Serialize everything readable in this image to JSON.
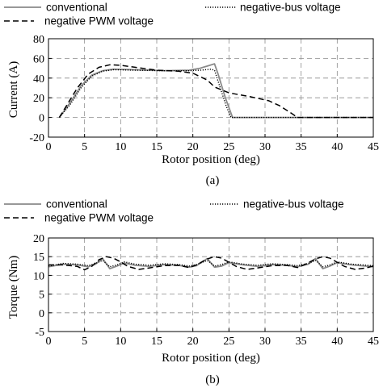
{
  "chart_data": [
    {
      "type": "line",
      "caption": "(a)",
      "xlabel": "Rotor position (deg)",
      "ylabel": "Current (A)",
      "xlim": [
        0,
        45
      ],
      "ylim": [
        -20,
        80
      ],
      "xticks": [
        0,
        5,
        10,
        15,
        20,
        25,
        30,
        35,
        40,
        45
      ],
      "yticks": [
        -20,
        0,
        20,
        40,
        60,
        80
      ],
      "grid": true,
      "legend_position": "top, outside plot",
      "series": [
        {
          "name": "conventional",
          "style": "solid",
          "color": "#8a8a8a",
          "points": [
            [
              1.5,
              0
            ],
            [
              3,
              15
            ],
            [
              4.5,
              32
            ],
            [
              6,
              43
            ],
            [
              7.5,
              47.5
            ],
            [
              9,
              49
            ],
            [
              12,
              48.5
            ],
            [
              16,
              47.5
            ],
            [
              19.5,
              48
            ],
            [
              21,
              50
            ],
            [
              23,
              54.5
            ],
            [
              23.5,
              44
            ],
            [
              24.5,
              20
            ],
            [
              25.5,
              0
            ],
            [
              45,
              0
            ]
          ]
        },
        {
          "name": "negative-bus voltage",
          "style": "dotted",
          "color": "#000000",
          "points": [
            [
              1.5,
              0
            ],
            [
              3,
              13
            ],
            [
              4.5,
              30
            ],
            [
              6,
              42
            ],
            [
              7.5,
              47
            ],
            [
              9,
              48.5
            ],
            [
              12,
              48
            ],
            [
              16,
              47.5
            ],
            [
              19.5,
              47.5
            ],
            [
              21,
              48
            ],
            [
              22.5,
              49
            ],
            [
              23,
              48
            ],
            [
              23.8,
              30
            ],
            [
              24.6,
              12
            ],
            [
              25.3,
              0
            ],
            [
              45,
              0
            ]
          ]
        },
        {
          "name": "negative PWM voltage",
          "style": "dashed",
          "color": "#000000",
          "points": [
            [
              1.5,
              0
            ],
            [
              2.5,
              12
            ],
            [
              4,
              30
            ],
            [
              5.5,
              44
            ],
            [
              7,
              51
            ],
            [
              8.5,
              53.5
            ],
            [
              10,
              53
            ],
            [
              12,
              51
            ],
            [
              15,
              48
            ],
            [
              18,
              47
            ],
            [
              20,
              45
            ],
            [
              22,
              38
            ],
            [
              23,
              31
            ],
            [
              25,
              25
            ],
            [
              28,
              21
            ],
            [
              30.5,
              17
            ],
            [
              32,
              12
            ],
            [
              33.5,
              5
            ],
            [
              34.5,
              0
            ],
            [
              45,
              0
            ]
          ]
        }
      ]
    },
    {
      "type": "line",
      "caption": "(b)",
      "xlabel": "Rotor position (deg)",
      "ylabel": "Torque (Nm)",
      "xlim": [
        0,
        45
      ],
      "ylim": [
        -5,
        20
      ],
      "xticks": [
        0,
        5,
        10,
        15,
        20,
        25,
        30,
        35,
        40,
        45
      ],
      "yticks": [
        -5,
        0,
        5,
        10,
        15,
        20
      ],
      "grid": true,
      "legend_position": "top, outside plot",
      "series": [
        {
          "name": "conventional",
          "style": "solid",
          "color": "#8a8a8a",
          "points": [
            [
              0,
              12.3
            ],
            [
              2,
              13
            ],
            [
              4,
              12.8
            ],
            [
              5.5,
              12.3
            ],
            [
              6.5,
              13
            ],
            [
              7.5,
              14.5
            ],
            [
              8.5,
              11.8
            ],
            [
              9.5,
              12.5
            ],
            [
              10.5,
              13.3
            ],
            [
              12,
              12.7
            ],
            [
              14,
              12.4
            ],
            [
              16,
              12.9
            ],
            [
              18,
              12.7
            ],
            [
              19.5,
              12.2
            ],
            [
              20.5,
              12.6
            ],
            [
              22,
              14.5
            ],
            [
              23,
              12.2
            ],
            [
              24,
              12.5
            ],
            [
              25,
              13.4
            ],
            [
              27,
              12.8
            ],
            [
              29,
              12.4
            ],
            [
              31,
              12.9
            ],
            [
              33,
              12.7
            ],
            [
              34.5,
              12.3
            ],
            [
              36,
              13
            ],
            [
              37,
              14.5
            ],
            [
              38,
              11.8
            ],
            [
              39,
              12.5
            ],
            [
              40,
              13.4
            ],
            [
              42,
              12.8
            ],
            [
              45,
              12.3
            ]
          ]
        },
        {
          "name": "negative-bus voltage",
          "style": "dotted",
          "color": "#000000",
          "points": [
            [
              0,
              12.5
            ],
            [
              2,
              13.2
            ],
            [
              4,
              13
            ],
            [
              5.5,
              12.6
            ],
            [
              6.5,
              13.2
            ],
            [
              7.5,
              14
            ],
            [
              8.5,
              12.3
            ],
            [
              9.5,
              12.8
            ],
            [
              10.5,
              13.6
            ],
            [
              12,
              13
            ],
            [
              14,
              12.7
            ],
            [
              16,
              13.1
            ],
            [
              18,
              12.9
            ],
            [
              19.5,
              12.5
            ],
            [
              20.5,
              12.9
            ],
            [
              22,
              14
            ],
            [
              23,
              12.5
            ],
            [
              24,
              12.9
            ],
            [
              25,
              13.6
            ],
            [
              27,
              13
            ],
            [
              29,
              12.7
            ],
            [
              31,
              13.1
            ],
            [
              33,
              12.9
            ],
            [
              34.5,
              12.6
            ],
            [
              36,
              13.2
            ],
            [
              37,
              14
            ],
            [
              38,
              12.3
            ],
            [
              39,
              12.8
            ],
            [
              40,
              13.6
            ],
            [
              42,
              13
            ],
            [
              45,
              12.6
            ]
          ]
        },
        {
          "name": "negative PWM voltage",
          "style": "dashed",
          "color": "#000000",
          "points": [
            [
              0,
              12.8
            ],
            [
              2,
              12.8
            ],
            [
              4,
              12.4
            ],
            [
              5,
              11.5
            ],
            [
              6,
              12.4
            ],
            [
              7,
              14.2
            ],
            [
              8,
              15
            ],
            [
              9,
              14.6
            ],
            [
              10,
              13.6
            ],
            [
              11,
              12.4
            ],
            [
              12.5,
              11.6
            ],
            [
              14,
              12
            ],
            [
              16,
              12.6
            ],
            [
              18,
              12.7
            ],
            [
              19.5,
              12.1
            ],
            [
              20.5,
              12.8
            ],
            [
              22,
              14.4
            ],
            [
              23,
              15
            ],
            [
              24,
              14.6
            ],
            [
              25,
              13.5
            ],
            [
              26,
              12.4
            ],
            [
              27.5,
              11.6
            ],
            [
              29,
              12
            ],
            [
              31,
              12.6
            ],
            [
              33,
              12.7
            ],
            [
              34.5,
              12.1
            ],
            [
              35.5,
              12.9
            ],
            [
              37,
              14.4
            ],
            [
              38,
              15
            ],
            [
              39,
              14.6
            ],
            [
              40,
              13.5
            ],
            [
              41,
              12.4
            ],
            [
              42.5,
              11.6
            ],
            [
              44,
              12
            ],
            [
              45,
              12.5
            ]
          ]
        }
      ]
    }
  ]
}
